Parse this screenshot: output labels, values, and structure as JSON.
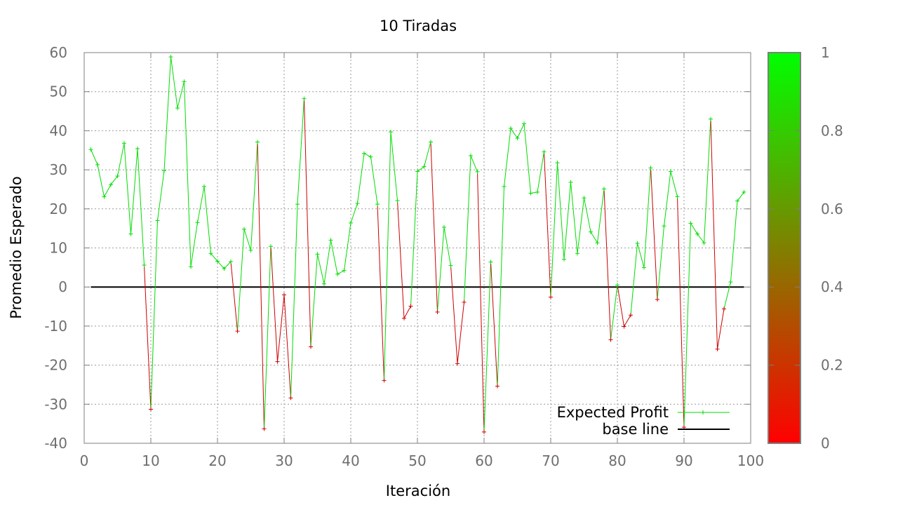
{
  "chart_data": {
    "type": "line",
    "title": "10 Tiradas",
    "xlabel": "Iteración",
    "ylabel": "Promedio Esperado",
    "xlim": [
      0,
      100
    ],
    "ylim": [
      -40,
      60
    ],
    "x_ticks": [
      "0",
      "10",
      "20",
      "30",
      "40",
      "50",
      "60",
      "70",
      "80",
      "90",
      "100"
    ],
    "y_ticks": [
      "60",
      "50",
      "40",
      "30",
      "20",
      "10",
      "0",
      "-10",
      "-20",
      "-30",
      "-40"
    ],
    "grid": true,
    "legend_position": "bottom-right",
    "colorbar": {
      "range": [
        0,
        1
      ],
      "ticks": [
        "1",
        "0.8",
        "0.6",
        "0.4",
        "0.2",
        "0"
      ],
      "low_color": "#ff0000",
      "high_color": "#00ff00"
    },
    "series": [
      {
        "name": "Expected Profit",
        "color_positive": "#00dd00",
        "color_negative": "#cc0000",
        "x": [
          1,
          2,
          3,
          4,
          5,
          6,
          7,
          8,
          9,
          10,
          11,
          12,
          13,
          14,
          15,
          16,
          17,
          18,
          19,
          20,
          21,
          22,
          23,
          24,
          25,
          26,
          27,
          28,
          29,
          30,
          31,
          32,
          33,
          34,
          35,
          36,
          37,
          38,
          39,
          40,
          41,
          42,
          43,
          44,
          45,
          46,
          47,
          48,
          49,
          50,
          51,
          52,
          53,
          54,
          55,
          56,
          57,
          58,
          59,
          60,
          61,
          62,
          63,
          64,
          65,
          66,
          67,
          68,
          69,
          70,
          71,
          72,
          73,
          74,
          75,
          76,
          77,
          78,
          79,
          80,
          81,
          82,
          83,
          84,
          85,
          86,
          87,
          88,
          89,
          90,
          91,
          92,
          93,
          94,
          95,
          96,
          97,
          98,
          99
        ],
        "values": [
          35.2,
          31.3,
          23.1,
          26.2,
          28.4,
          36.8,
          13.6,
          35.4,
          5.6,
          -31.3,
          17.0,
          29.8,
          58.9,
          45.8,
          52.6,
          5.2,
          16.5,
          25.7,
          8.6,
          6.6,
          4.7,
          6.5,
          -11.3,
          14.8,
          9.4,
          37.1,
          -36.3,
          10.4,
          -19.1,
          -2.0,
          -28.4,
          21.2,
          48.2,
          -15.3,
          8.4,
          0.8,
          12.0,
          3.3,
          4.2,
          16.4,
          21.4,
          34.2,
          33.3,
          21.2,
          -23.9,
          39.7,
          22.1,
          -8.0,
          -4.9,
          29.6,
          30.8,
          37.1,
          -6.4,
          15.3,
          5.5,
          -19.6,
          -3.9,
          33.6,
          29.5,
          -37.1,
          6.4,
          -25.4,
          25.7,
          40.6,
          38.1,
          41.8,
          24.0,
          24.3,
          34.6,
          -2.6,
          31.8,
          7.1,
          26.8,
          8.6,
          22.8,
          14.1,
          11.3,
          25.1,
          -13.5,
          0.5,
          -10.1,
          -7.2,
          11.2,
          5.0,
          30.5,
          -3.2,
          15.6,
          29.6,
          23.1,
          -35.9,
          16.3,
          13.6,
          11.3,
          43.0,
          -15.9,
          -5.6,
          1.3,
          22.0,
          24.3
        ]
      },
      {
        "name": "base line",
        "color": "#000000",
        "x": [
          1,
          99
        ],
        "values": [
          0,
          0
        ]
      }
    ]
  }
}
